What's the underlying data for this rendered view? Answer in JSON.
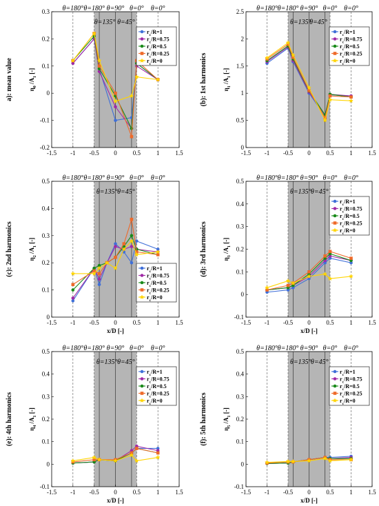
{
  "legend_labels": [
    "r_c/R=1",
    "r_c/R=0.75",
    "r_c/R=0.5",
    "r_c/R=0.25",
    "r_c/R=0"
  ],
  "colors": [
    "#3f6fd8",
    "#a02aa6",
    "#1a8a1a",
    "#ee6a2a",
    "#ffd400"
  ],
  "chart_data": [
    {
      "type": "line",
      "panel_label": "a): mean value",
      "xlabel": "",
      "ylabel_main": "η",
      "ylabel_sub": "0",
      "ylabel_rest": " /A",
      "ylabel_sub2": "1",
      "ylabel_unit": " [-]",
      "xlim": [
        -1.5,
        1.5
      ],
      "ylim": [
        -0.2,
        0.3
      ],
      "xticks": [
        -1.5,
        -1,
        -0.5,
        0,
        0.5,
        1,
        1.5
      ],
      "xtick_labels": [
        "-1.5",
        "-1",
        "-0.5",
        "0",
        "0.5",
        "1",
        "1.5"
      ],
      "yticks": [
        -0.2,
        -0.1,
        0,
        0.1,
        0.2,
        0.3
      ],
      "ytick_labels": [
        "-0.2",
        "-0.1",
        "0",
        "0.1",
        "0.2",
        "0.3"
      ],
      "shade": [
        -0.5,
        0.5
      ],
      "solid_lines": [
        -0.38,
        0,
        0.38
      ],
      "dashed_lines": [
        -1,
        -0.5,
        0.5,
        1
      ],
      "theta_top": [
        "θ=180°",
        "θ=180°",
        "θ=90°",
        "θ=0°",
        "θ=0°"
      ],
      "theta_top_x": [
        -1,
        -0.5,
        0,
        0.5,
        1
      ],
      "theta_mid": [
        "θ=135°",
        "θ=45°"
      ],
      "theta_mid_x": [
        -0.25,
        0.25
      ],
      "legend_pos": "top-right",
      "x": [
        -1,
        -0.5,
        -0.38,
        0,
        0.38,
        0.5,
        1
      ],
      "series": [
        {
          "name": "r_c/R=1",
          "values": [
            0.11,
            0.2,
            0.09,
            -0.1,
            -0.09,
            0.11,
            0.05
          ]
        },
        {
          "name": "r_c/R=0.75",
          "values": [
            0.11,
            0.2,
            0.08,
            -0.05,
            -0.13,
            0.1,
            0.05
          ]
        },
        {
          "name": "r_c/R=0.5",
          "values": [
            0.12,
            0.21,
            0.09,
            -0.01,
            -0.13,
            0.11,
            0.05
          ]
        },
        {
          "name": "r_c/R=0.25",
          "values": [
            0.12,
            0.22,
            0.1,
            0.0,
            -0.16,
            0.12,
            0.05
          ]
        },
        {
          "name": "r_c/R=0",
          "values": [
            0.12,
            0.22,
            0.12,
            -0.03,
            -0.01,
            0.06,
            0.05
          ]
        }
      ]
    },
    {
      "type": "line",
      "panel_label": "(b): 1st harmonics",
      "xlabel": "",
      "ylabel_main": "η",
      "ylabel_sub": "1",
      "ylabel_rest": " /A",
      "ylabel_sub2": "1",
      "ylabel_unit": " [-]",
      "xlim": [
        -1.5,
        1.5
      ],
      "ylim": [
        0,
        2.5
      ],
      "xticks": [
        -1.5,
        -1,
        -0.5,
        0,
        0.5,
        1,
        1.5
      ],
      "xtick_labels": [
        "-1.5",
        "-1",
        "-0.5",
        "0",
        "0.5",
        "1",
        "1.5"
      ],
      "yticks": [
        0,
        0.5,
        1,
        1.5,
        2,
        2.5
      ],
      "ytick_labels": [
        "0",
        "0.5",
        "1",
        "1.5",
        "2",
        "2.5"
      ],
      "shade": [
        -0.5,
        0.5
      ],
      "solid_lines": [
        -0.38,
        0,
        0.38
      ],
      "dashed_lines": [
        -1,
        -0.5,
        0.5,
        1
      ],
      "theta_top": [
        "θ=180°",
        "θ=180°",
        "θ=90°",
        "θ=0°",
        "θ=0°"
      ],
      "theta_top_x": [
        -1,
        -0.5,
        0,
        0.5,
        1
      ],
      "theta_mid": [
        "θ=135°",
        "θ=45°"
      ],
      "theta_mid_x": [
        -0.2,
        0.22
      ],
      "legend_pos": "top-right",
      "x": [
        -1,
        -0.5,
        -0.38,
        0,
        0.38,
        0.5,
        1
      ],
      "series": [
        {
          "name": "r_c/R=1",
          "values": [
            1.55,
            1.83,
            1.58,
            1.0,
            0.58,
            0.97,
            0.95
          ]
        },
        {
          "name": "r_c/R=0.75",
          "values": [
            1.58,
            1.85,
            1.6,
            1.02,
            0.6,
            0.98,
            0.95
          ]
        },
        {
          "name": "r_c/R=0.5",
          "values": [
            1.6,
            1.87,
            1.63,
            1.04,
            0.6,
            0.98,
            0.93
          ]
        },
        {
          "name": "r_c/R=0.25",
          "values": [
            1.63,
            1.9,
            1.66,
            1.05,
            0.55,
            0.95,
            0.93
          ]
        },
        {
          "name": "r_c/R=0",
          "values": [
            1.65,
            1.93,
            1.7,
            1.1,
            0.5,
            0.88,
            0.86
          ]
        }
      ]
    },
    {
      "type": "line",
      "panel_label": "(c): 2nd harmonics",
      "xlabel": "x/D  [-]",
      "ylabel_main": "η",
      "ylabel_sub": "2",
      "ylabel_rest": " /A",
      "ylabel_sub2": "1",
      "ylabel_unit": " [-]",
      "xlim": [
        -1.5,
        1.5
      ],
      "ylim": [
        0,
        0.5
      ],
      "xticks": [
        -1.5,
        -1,
        -0.5,
        0,
        0.5,
        1,
        1.5
      ],
      "xtick_labels": [
        "-1.5",
        "-1",
        "-0.5",
        "0",
        "0.5",
        "1",
        "1.5"
      ],
      "yticks": [
        0,
        0.1,
        0.2,
        0.3,
        0.4,
        0.5
      ],
      "ytick_labels": [
        "0",
        "0.1",
        "0.2",
        "0.3",
        "0.4",
        "0.5"
      ],
      "shade": [
        -0.5,
        0.5
      ],
      "solid_lines": [
        -0.38,
        0,
        0.38
      ],
      "dashed_lines": [
        -1,
        -0.5,
        0.5,
        1
      ],
      "theta_top": [
        "θ=180°",
        "θ=180°",
        "θ=90°",
        "θ=0°",
        "θ=0°"
      ],
      "theta_top_x": [
        -1,
        -0.5,
        0,
        0.5,
        1
      ],
      "theta_mid": [
        "θ=135°",
        "θ=45°"
      ],
      "theta_mid_x": [
        -0.2,
        0.25
      ],
      "legend_pos": "bottom-right",
      "x": [
        -1,
        -0.5,
        -0.38,
        -0.2,
        0,
        0.2,
        0.38,
        0.5,
        1
      ],
      "series": [
        {
          "name": "r_c/R=1",
          "values": [
            0.06,
            0.18,
            0.12,
            0.2,
            0.27,
            0.24,
            0.2,
            0.28,
            0.25
          ]
        },
        {
          "name": "r_c/R=0.75",
          "values": [
            0.07,
            0.18,
            0.14,
            0.2,
            0.26,
            0.25,
            0.26,
            0.25,
            0.24
          ]
        },
        {
          "name": "r_c/R=0.5",
          "values": [
            0.1,
            0.18,
            0.19,
            0.2,
            0.22,
            0.26,
            0.3,
            0.25,
            0.23
          ]
        },
        {
          "name": "r_c/R=0.25",
          "values": [
            0.12,
            0.17,
            0.16,
            0.2,
            0.22,
            0.27,
            0.36,
            0.24,
            0.23
          ]
        },
        {
          "name": "r_c/R=0",
          "values": [
            0.16,
            0.16,
            0.18,
            0.2,
            0.18,
            0.25,
            0.28,
            0.23,
            0.24
          ]
        }
      ]
    },
    {
      "type": "line",
      "panel_label": "(d): 3rd harmonics",
      "xlabel": "x/D  [-]",
      "ylabel_main": "η",
      "ylabel_sub": "3",
      "ylabel_rest": " /A",
      "ylabel_sub2": "1",
      "ylabel_unit": " [-]",
      "xlim": [
        -1.5,
        1.5
      ],
      "ylim": [
        -0.1,
        0.5
      ],
      "xticks": [
        -1.5,
        -1,
        -0.5,
        0,
        0.5,
        1,
        1.5
      ],
      "xtick_labels": [
        "-1.5",
        "-1",
        "-0.5",
        "0",
        "0.5",
        "1",
        "1.5"
      ],
      "yticks": [
        -0.1,
        0,
        0.1,
        0.2,
        0.3,
        0.4,
        0.5
      ],
      "ytick_labels": [
        "-0.1",
        "0",
        "0.1",
        "0.2",
        "0.3",
        "0.4",
        "0.5"
      ],
      "shade": [
        -0.5,
        0.5
      ],
      "solid_lines": [
        -0.38,
        0,
        0.38
      ],
      "dashed_lines": [
        -1,
        -0.5,
        0.5,
        1
      ],
      "theta_top": [
        "θ=180°",
        "θ=180°",
        "θ=90°",
        "θ=0°",
        "θ=0°"
      ],
      "theta_top_x": [
        -1,
        -0.5,
        0,
        0.5,
        1
      ],
      "theta_mid": [
        "θ=135°",
        "θ=45°"
      ],
      "theta_mid_x": [
        -0.2,
        0.25
      ],
      "legend_pos": "top-right",
      "x": [
        -1,
        -0.5,
        -0.38,
        0,
        0.38,
        0.5,
        1
      ],
      "series": [
        {
          "name": "r_c/R=1",
          "values": [
            0.01,
            0.02,
            0.03,
            0.07,
            0.14,
            0.16,
            0.14
          ]
        },
        {
          "name": "r_c/R=0.75",
          "values": [
            0.02,
            0.03,
            0.04,
            0.08,
            0.15,
            0.17,
            0.15
          ]
        },
        {
          "name": "r_c/R=0.5",
          "values": [
            0.02,
            0.03,
            0.04,
            0.09,
            0.16,
            0.18,
            0.15
          ]
        },
        {
          "name": "r_c/R=0.25",
          "values": [
            0.02,
            0.04,
            0.05,
            0.1,
            0.17,
            0.19,
            0.16
          ]
        },
        {
          "name": "r_c/R=0",
          "values": [
            0.03,
            0.06,
            0.05,
            0.08,
            0.09,
            0.07,
            0.08
          ]
        }
      ]
    },
    {
      "type": "line",
      "panel_label": "(e): 4th harmonics",
      "xlabel": "x/D  [-]",
      "ylabel_main": "η",
      "ylabel_sub": "4",
      "ylabel_rest": " /A",
      "ylabel_sub2": "1",
      "ylabel_unit": " [-]",
      "xlim": [
        -1.5,
        1.5
      ],
      "ylim": [
        -0.1,
        0.5
      ],
      "xticks": [
        -1.5,
        -1,
        -0.5,
        0,
        0.5,
        1,
        1.5
      ],
      "xtick_labels": [
        "-1.5",
        "-1",
        "-0.5",
        "0",
        "0.5",
        "1",
        "1.5"
      ],
      "yticks": [
        -0.1,
        0,
        0.1,
        0.2,
        0.3,
        0.4,
        0.5
      ],
      "ytick_labels": [
        "-0.1",
        "0",
        "0.1",
        "0.2",
        "0.3",
        "0.4",
        "0.5"
      ],
      "shade": [
        -0.5,
        0.5
      ],
      "solid_lines": [
        -0.38,
        0,
        0.38
      ],
      "dashed_lines": [
        -1,
        -0.5,
        0.5,
        1
      ],
      "theta_top": [
        "θ=180°",
        "θ=180°",
        "θ=90°",
        "θ=0°",
        "θ=0°"
      ],
      "theta_top_x": [
        -1,
        -0.5,
        0,
        0.5,
        1
      ],
      "theta_mid": [
        "θ=135°",
        "θ=45°"
      ],
      "theta_mid_x": [
        -0.2,
        0.25
      ],
      "legend_pos": "top-right",
      "x": [
        -1,
        -0.5,
        -0.38,
        0,
        0.38,
        0.5,
        1
      ],
      "series": [
        {
          "name": "r_c/R=1",
          "values": [
            0.005,
            0.01,
            0.02,
            0.015,
            0.05,
            0.07,
            0.07
          ]
        },
        {
          "name": "r_c/R=0.75",
          "values": [
            0.005,
            0.01,
            0.02,
            0.015,
            0.06,
            0.08,
            0.06
          ]
        },
        {
          "name": "r_c/R=0.5",
          "values": [
            0.005,
            0.01,
            0.02,
            0.015,
            0.05,
            0.07,
            0.05
          ]
        },
        {
          "name": "r_c/R=0.25",
          "values": [
            0.01,
            0.02,
            0.02,
            0.02,
            0.05,
            0.07,
            0.05
          ]
        },
        {
          "name": "r_c/R=0",
          "values": [
            0.015,
            0.03,
            0.02,
            0.015,
            0.04,
            0.015,
            0.03
          ]
        }
      ]
    },
    {
      "type": "line",
      "panel_label": "(f): 5th harmonics",
      "xlabel": "x/D  [-]",
      "ylabel_main": "η",
      "ylabel_sub": "5",
      "ylabel_rest": " /A",
      "ylabel_sub2": "1",
      "ylabel_unit": " [-]",
      "xlim": [
        -1.5,
        1.5
      ],
      "ylim": [
        -0.1,
        0.5
      ],
      "xticks": [
        -1.5,
        -1,
        -0.5,
        0,
        0.5,
        1,
        1.5
      ],
      "xtick_labels": [
        "-1.5",
        "-1",
        "-0.5",
        "0",
        "0.5",
        "1",
        "1.5"
      ],
      "yticks": [
        -0.1,
        0,
        0.1,
        0.2,
        0.3,
        0.4,
        0.5
      ],
      "ytick_labels": [
        "-0.1",
        "0",
        "0.1",
        "0.2",
        "0.3",
        "0.4",
        "0.5"
      ],
      "shade": [
        -0.5,
        0.5
      ],
      "solid_lines": [
        -0.38,
        0,
        0.38
      ],
      "dashed_lines": [
        -1,
        -0.5,
        0.5,
        1
      ],
      "theta_top": [
        "θ=180°",
        "θ=180°",
        "θ=90°",
        "θ=0°",
        "θ=0°"
      ],
      "theta_top_x": [
        -1,
        -0.5,
        0,
        0.5,
        1
      ],
      "theta_mid": [
        "θ=135°",
        "θ=45°"
      ],
      "theta_mid_x": [
        -0.2,
        0.25
      ],
      "legend_pos": "top-right",
      "x": [
        -1,
        -0.5,
        -0.38,
        0,
        0.38,
        0.5,
        1
      ],
      "series": [
        {
          "name": "r_c/R=1",
          "values": [
            0.003,
            0.005,
            0.01,
            0.02,
            0.03,
            0.03,
            0.035
          ]
        },
        {
          "name": "r_c/R=0.75",
          "values": [
            0.003,
            0.005,
            0.01,
            0.02,
            0.03,
            0.025,
            0.03
          ]
        },
        {
          "name": "r_c/R=0.5",
          "values": [
            0.003,
            0.005,
            0.01,
            0.02,
            0.03,
            0.025,
            0.025
          ]
        },
        {
          "name": "r_c/R=0.25",
          "values": [
            0.005,
            0.01,
            0.01,
            0.02,
            0.03,
            0.02,
            0.02
          ]
        },
        {
          "name": "r_c/R=0",
          "values": [
            0.008,
            0.012,
            0.012,
            0.015,
            0.025,
            0.015,
            0.02
          ]
        }
      ]
    }
  ]
}
